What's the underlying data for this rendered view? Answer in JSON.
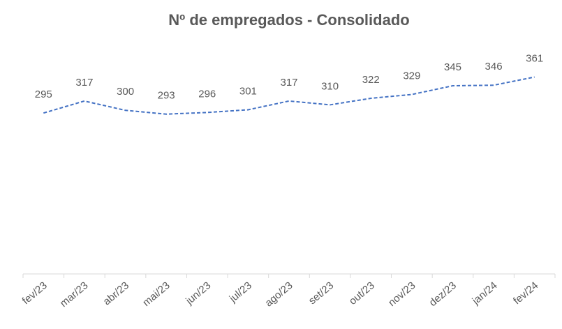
{
  "chart_data": {
    "type": "line",
    "title": "Nº de empregados - Consolidado",
    "categories": [
      "fev/23",
      "mar/23",
      "abr/23",
      "mai/23",
      "jun/23",
      "jul/23",
      "ago/23",
      "set/23",
      "out/23",
      "nov/23",
      "dez/23",
      "jan/24",
      "fev/24"
    ],
    "values": [
      295,
      317,
      300,
      293,
      296,
      301,
      317,
      310,
      322,
      329,
      345,
      346,
      361
    ],
    "color": "#4472c4",
    "ylim": [
      0,
      400
    ]
  }
}
